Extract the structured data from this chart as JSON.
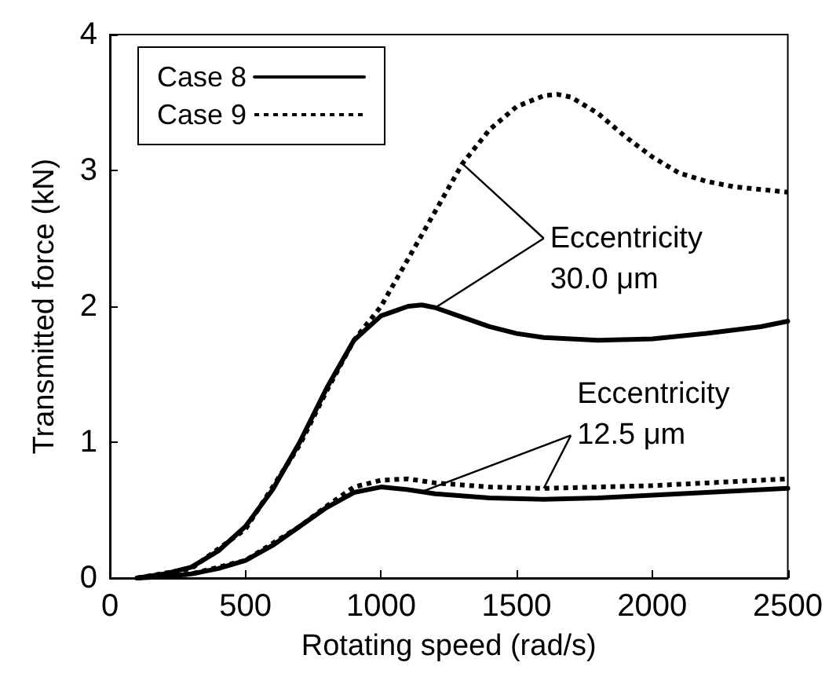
{
  "chart_data": {
    "type": "line",
    "xlabel": "Rotating speed (rad/s)",
    "ylabel": "Transmitted force (kN)",
    "xlim": [
      0,
      2500
    ],
    "xticks": [
      0,
      500,
      1000,
      1500,
      2000,
      2500
    ],
    "ylim": [
      0,
      4
    ],
    "yticks": [
      0,
      1,
      2,
      3,
      4
    ],
    "grid": false,
    "legend": "top left",
    "marker": "none",
    "series": [
      {
        "name": "Case 8",
        "color": "#000000",
        "line_style": "solid",
        "x": [
          100,
          200,
          300,
          400,
          500,
          600,
          700,
          800,
          900,
          1000,
          1100,
          1150,
          1200,
          1300,
          1400,
          1500,
          1600,
          1800,
          2000,
          2200,
          2400,
          2500
        ],
        "values": [
          0,
          0.03,
          0.08,
          0.2,
          0.38,
          0.65,
          1.0,
          1.4,
          1.75,
          1.93,
          2.0,
          2.01,
          1.99,
          1.92,
          1.85,
          1.8,
          1.77,
          1.75,
          1.76,
          1.8,
          1.85,
          1.89
        ]
      },
      {
        "name": "Case 9",
        "color": "#000000",
        "line_style": "dotted",
        "x": [
          100,
          300,
          500,
          700,
          800,
          900,
          1000,
          1100,
          1200,
          1300,
          1400,
          1500,
          1600,
          1650,
          1700,
          1800,
          1900,
          2000,
          2100,
          2200,
          2300,
          2400,
          2500
        ],
        "values": [
          0,
          0.07,
          0.36,
          0.98,
          1.38,
          1.75,
          2.0,
          2.35,
          2.7,
          3.05,
          3.3,
          3.47,
          3.55,
          3.56,
          3.54,
          3.42,
          3.25,
          3.1,
          2.98,
          2.92,
          2.88,
          2.86,
          2.84
        ]
      },
      {
        "color": "#000000",
        "line_style": "solid",
        "x": [
          100,
          200,
          300,
          400,
          500,
          600,
          700,
          800,
          900,
          1000,
          1100,
          1200,
          1400,
          1600,
          1800,
          2000,
          2200,
          2500
        ],
        "values": [
          0,
          0.01,
          0.03,
          0.07,
          0.13,
          0.24,
          0.38,
          0.52,
          0.63,
          0.67,
          0.65,
          0.62,
          0.59,
          0.58,
          0.59,
          0.61,
          0.63,
          0.66
        ]
      },
      {
        "color": "#000000",
        "line_style": "dotted",
        "x": [
          100,
          300,
          500,
          700,
          800,
          900,
          1000,
          1100,
          1200,
          1400,
          1600,
          1800,
          2000,
          2200,
          2500
        ],
        "values": [
          0,
          0.03,
          0.13,
          0.38,
          0.53,
          0.67,
          0.72,
          0.73,
          0.7,
          0.67,
          0.66,
          0.67,
          0.68,
          0.7,
          0.73
        ]
      }
    ],
    "annotations": [
      {
        "text": "Eccentricity\n30.0 μm",
        "x": 1200,
        "y": 1.99
      },
      {
        "text": "Eccentricity\n12.5 μm",
        "x": 1600,
        "y": 0.66
      }
    ]
  }
}
